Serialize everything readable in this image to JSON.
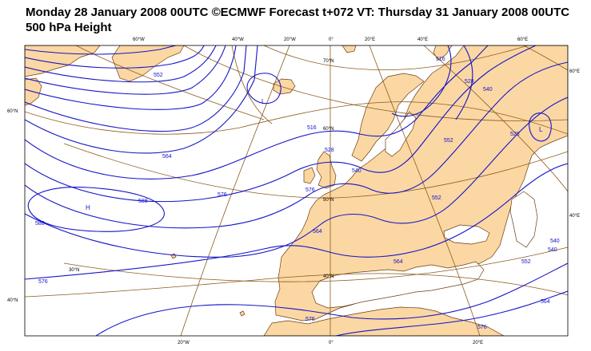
{
  "header": {
    "line1": "Monday 28 January 2008 00UTC ©ECMWF Forecast t+072 VT: Thursday 31 January 2008 00UTC",
    "line2": "500 hPa Height"
  },
  "colors": {
    "land": "#fbd7a4",
    "sea": "#ffffff",
    "contour": "#1414c8",
    "graticule": "#8b5a1a",
    "coast": "#6b3d10"
  },
  "graticule_labels": {
    "top": [
      "60°W",
      "40°W",
      "20°W",
      "0°",
      "20°E",
      "40°E",
      "60°E"
    ],
    "bottom": [
      "20°W",
      "0°",
      "20°E"
    ],
    "left": [
      "60°N",
      "40°N"
    ],
    "right": [
      "60°E",
      "40°E"
    ],
    "interior": [
      "70°N",
      "60°N",
      "50°N",
      "40°N",
      "30°N"
    ]
  },
  "contour_labels": [
    "552",
    "516",
    "540",
    "528",
    "516",
    "528",
    "540",
    "552",
    "564",
    "576",
    "588",
    "588",
    "576",
    "564",
    "576",
    "552",
    "540",
    "564",
    "576",
    "528",
    "540",
    "576",
    "552",
    "564"
  ],
  "pressure_centres": [
    "L",
    "L",
    "H"
  ]
}
